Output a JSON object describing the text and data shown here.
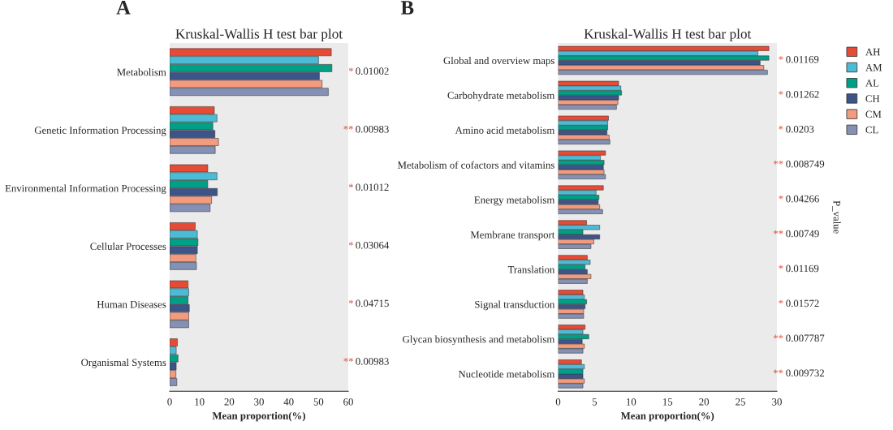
{
  "chart_data": [
    {
      "type": "bar",
      "orientation": "horizontal",
      "title": "Kruskal-Wallis H test bar plot",
      "xlabel": "Mean proportion(%)",
      "categories": [
        "Metabolism",
        "Genetic Information Processing",
        "Environmental Information Processing",
        "Cellular Processes",
        "Human Diseases",
        "Organismal Systems"
      ],
      "series": [
        {
          "color": "#e64b35",
          "values": [
            54.3,
            15.0,
            12.8,
            8.6,
            6.2,
            2.6
          ]
        },
        {
          "color": "#4dbbd5",
          "values": [
            50.0,
            15.9,
            15.9,
            9.3,
            6.4,
            2.2
          ]
        },
        {
          "color": "#00a087",
          "values": [
            54.5,
            14.5,
            12.8,
            9.5,
            6.2,
            2.8
          ]
        },
        {
          "color": "#3c5488",
          "values": [
            50.3,
            15.2,
            16.0,
            9.3,
            6.6,
            2.2
          ]
        },
        {
          "color": "#f39b7f",
          "values": [
            51.2,
            16.4,
            14.1,
            8.8,
            6.4,
            2.1
          ]
        },
        {
          "color": "#8491b4",
          "values": [
            53.3,
            15.3,
            13.6,
            9.0,
            6.4,
            2.4
          ]
        }
      ],
      "xlim": [
        0,
        60
      ],
      "xticks": [
        0,
        10,
        20,
        30,
        40,
        50,
        60
      ],
      "legend": false,
      "annotations": [
        "A",
        "* 0.01002",
        "** 0.00983",
        "* 0.01012",
        "* 0.03064",
        "* 0.04715",
        "** 0.00983"
      ]
    },
    {
      "type": "bar",
      "orientation": "horizontal",
      "title": "Kruskal-Wallis H test bar plot",
      "xlabel": "Mean proportion(%)",
      "categories": [
        "Global and overview maps",
        "Carbohydrate metabolism",
        "Amino acid metabolism",
        "Metabolism of cofactors and vitamins",
        "Energy metabolism",
        "Membrane transport",
        "Translation",
        "Signal transduction",
        "Glycan biosynthesis and metabolism",
        "Nucleotide metabolism"
      ],
      "series": [
        {
          "name": "AH",
          "color": "#e64b35",
          "values": [
            28.9,
            8.3,
            6.9,
            6.5,
            6.2,
            3.9,
            4.0,
            3.4,
            3.7,
            3.2
          ]
        },
        {
          "name": "AM",
          "color": "#4dbbd5",
          "values": [
            27.4,
            8.6,
            6.8,
            5.8,
            5.2,
            5.7,
            4.4,
            3.6,
            3.4,
            3.6
          ]
        },
        {
          "name": "AL",
          "color": "#00a087",
          "values": [
            28.9,
            8.7,
            6.8,
            6.3,
            5.6,
            3.4,
            3.7,
            3.9,
            4.2,
            3.4
          ]
        },
        {
          "name": "CH",
          "color": "#3c5488",
          "values": [
            27.7,
            8.3,
            6.7,
            6.2,
            5.5,
            5.7,
            4.0,
            3.7,
            3.3,
            3.4
          ]
        },
        {
          "name": "CM",
          "color": "#f39b7f",
          "values": [
            28.2,
            8.2,
            7.0,
            6.3,
            5.7,
            4.9,
            4.5,
            3.5,
            3.6,
            3.6
          ]
        },
        {
          "name": "CL",
          "color": "#8491b4",
          "values": [
            28.7,
            8.0,
            7.1,
            6.5,
            6.1,
            4.5,
            4.0,
            3.5,
            3.4,
            3.4
          ]
        }
      ],
      "xlim": [
        0,
        30
      ],
      "xticks": [
        0,
        5,
        10,
        15,
        20,
        25,
        30
      ],
      "legend": "right",
      "annotations": [
        "B",
        "* 0.01169",
        "* 0.01262",
        "* 0.0203",
        "** 0.008749",
        "* 0.04266",
        "** 0.00749",
        "* 0.01169",
        "* 0.01572",
        "** 0.007787",
        "** 0.009732",
        "P_value"
      ]
    }
  ]
}
